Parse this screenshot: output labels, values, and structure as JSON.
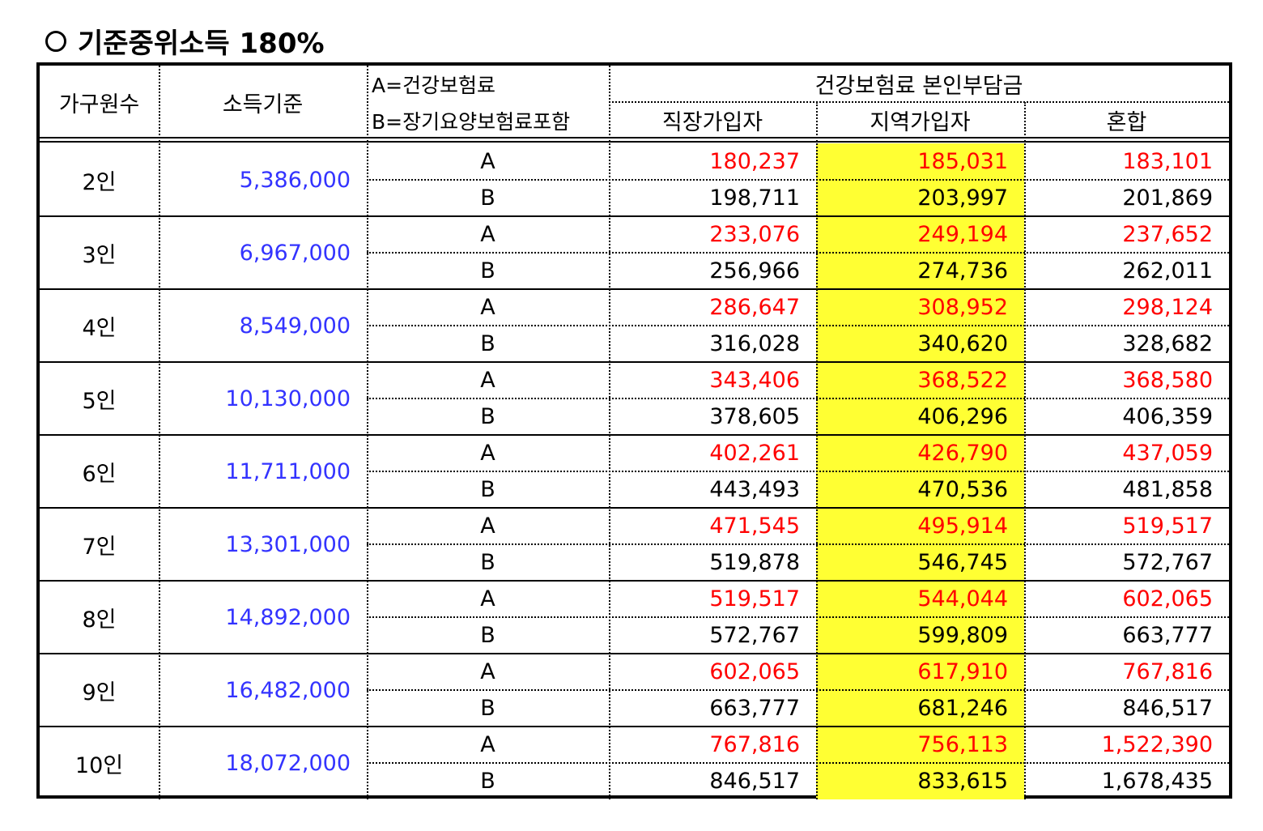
{
  "title": "기준중위소득 180%",
  "colors": {
    "red": "#ff0000",
    "blue": "#3333ff",
    "highlight": "#ffff33"
  },
  "header": {
    "household": "가구원수",
    "income": "소득기준",
    "legend_a": "A=건강보험료",
    "legend_b": "B=장기요양보험료포함",
    "group": "건강보험료 본인부담금",
    "col_employee": "직장가입자",
    "col_regional": "지역가입자",
    "col_mixed": "혼합"
  },
  "rows": [
    {
      "household": "2인",
      "income": "5,386,000",
      "a": {
        "type": "A",
        "employee": "180,237",
        "regional": "185,031",
        "mixed": "183,101"
      },
      "b": {
        "type": "B",
        "employee": "198,711",
        "regional": "203,997",
        "mixed": "201,869"
      }
    },
    {
      "household": "3인",
      "income": "6,967,000",
      "a": {
        "type": "A",
        "employee": "233,076",
        "regional": "249,194",
        "mixed": "237,652"
      },
      "b": {
        "type": "B",
        "employee": "256,966",
        "regional": "274,736",
        "mixed": "262,011"
      }
    },
    {
      "household": "4인",
      "income": "8,549,000",
      "a": {
        "type": "A",
        "employee": "286,647",
        "regional": "308,952",
        "mixed": "298,124"
      },
      "b": {
        "type": "B",
        "employee": "316,028",
        "regional": "340,620",
        "mixed": "328,682"
      }
    },
    {
      "household": "5인",
      "income": "10,130,000",
      "a": {
        "type": "A",
        "employee": "343,406",
        "regional": "368,522",
        "mixed": "368,580"
      },
      "b": {
        "type": "B",
        "employee": "378,605",
        "regional": "406,296",
        "mixed": "406,359"
      }
    },
    {
      "household": "6인",
      "income": "11,711,000",
      "a": {
        "type": "A",
        "employee": "402,261",
        "regional": "426,790",
        "mixed": "437,059"
      },
      "b": {
        "type": "B",
        "employee": "443,493",
        "regional": "470,536",
        "mixed": "481,858"
      }
    },
    {
      "household": "7인",
      "income": "13,301,000",
      "a": {
        "type": "A",
        "employee": "471,545",
        "regional": "495,914",
        "mixed": "519,517"
      },
      "b": {
        "type": "B",
        "employee": "519,878",
        "regional": "546,745",
        "mixed": "572,767"
      }
    },
    {
      "household": "8인",
      "income": "14,892,000",
      "a": {
        "type": "A",
        "employee": "519,517",
        "regional": "544,044",
        "mixed": "602,065"
      },
      "b": {
        "type": "B",
        "employee": "572,767",
        "regional": "599,809",
        "mixed": "663,777"
      }
    },
    {
      "household": "9인",
      "income": "16,482,000",
      "a": {
        "type": "A",
        "employee": "602,065",
        "regional": "617,910",
        "mixed": "767,816"
      },
      "b": {
        "type": "B",
        "employee": "663,777",
        "regional": "681,246",
        "mixed": "846,517"
      }
    },
    {
      "household": "10인",
      "income": "18,072,000",
      "a": {
        "type": "A",
        "employee": "767,816",
        "regional": "756,113",
        "mixed": "1,522,390"
      },
      "b": {
        "type": "B",
        "employee": "846,517",
        "regional": "833,615",
        "mixed": "1,678,435"
      }
    }
  ]
}
